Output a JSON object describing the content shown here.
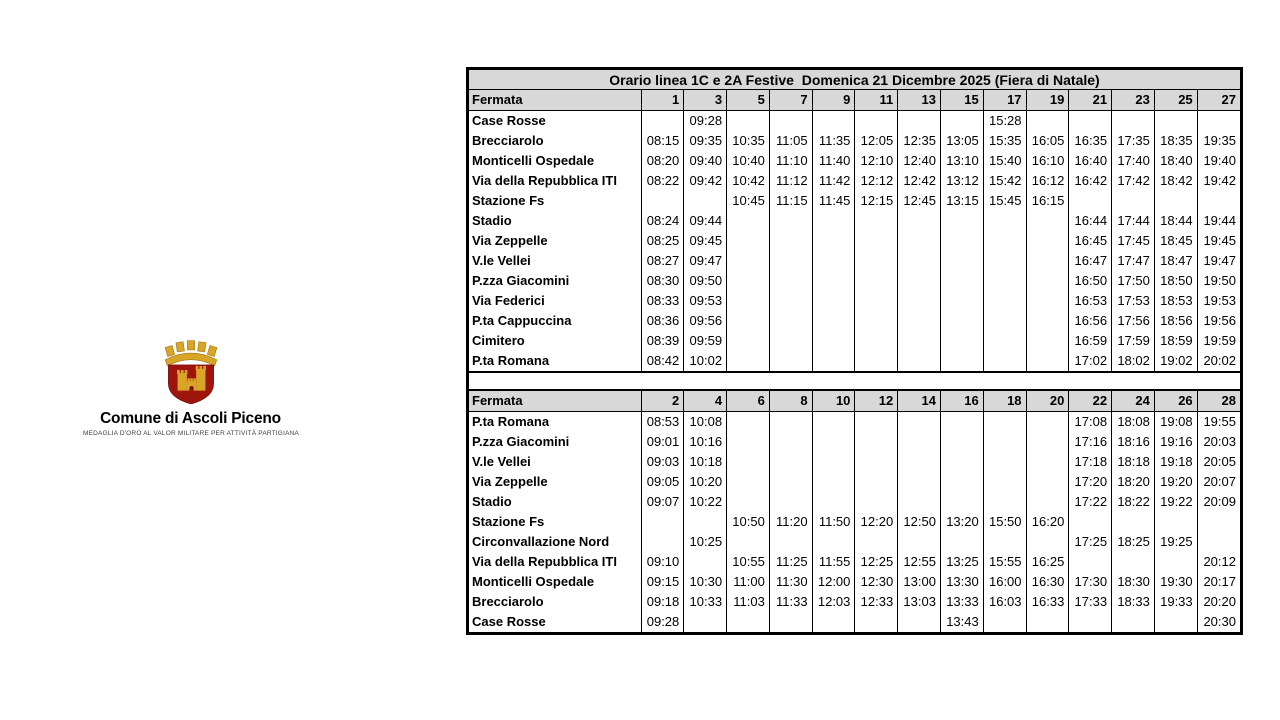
{
  "logo": {
    "title": "Comune di Ascoli Piceno",
    "subtitle": "MEDAGLIA D'ORO AL VALOR MILITARE PER ATTIVITÀ PARTIGIANA",
    "crest_colors": {
      "shield": "#9e150d",
      "gold": "#d9a527",
      "door": "#7a1008"
    }
  },
  "timetable": {
    "title": "Orario linea 1C e 2A Festive  Domenica 21 Dicembre 2025 (Fiera di Natale)",
    "header_label": "Fermata",
    "header_bg": "#d8d8d8",
    "tables": [
      {
        "columns": [
          "1",
          "3",
          "5",
          "7",
          "9",
          "11",
          "13",
          "15",
          "17",
          "19",
          "21",
          "23",
          "25",
          "27"
        ],
        "rows": [
          {
            "stop": "Case Rosse",
            "times": [
              "",
              "09:28",
              "",
              "",
              "",
              "",
              "",
              "",
              "15:28",
              "",
              "",
              "",
              "",
              ""
            ]
          },
          {
            "stop": "Brecciarolo",
            "times": [
              "08:15",
              "09:35",
              "10:35",
              "11:05",
              "11:35",
              "12:05",
              "12:35",
              "13:05",
              "15:35",
              "16:05",
              "16:35",
              "17:35",
              "18:35",
              "19:35"
            ]
          },
          {
            "stop": "Monticelli Ospedale",
            "times": [
              "08:20",
              "09:40",
              "10:40",
              "11:10",
              "11:40",
              "12:10",
              "12:40",
              "13:10",
              "15:40",
              "16:10",
              "16:40",
              "17:40",
              "18:40",
              "19:40"
            ]
          },
          {
            "stop": "Via della Repubblica ITI",
            "times": [
              "08:22",
              "09:42",
              "10:42",
              "11:12",
              "11:42",
              "12:12",
              "12:42",
              "13:12",
              "15:42",
              "16:12",
              "16:42",
              "17:42",
              "18:42",
              "19:42"
            ]
          },
          {
            "stop": "Stazione Fs",
            "times": [
              "",
              "",
              "10:45",
              "11:15",
              "11:45",
              "12:15",
              "12:45",
              "13:15",
              "15:45",
              "16:15",
              "",
              "",
              "",
              ""
            ]
          },
          {
            "stop": "Stadio",
            "times": [
              "08:24",
              "09:44",
              "",
              "",
              "",
              "",
              "",
              "",
              "",
              "",
              "16:44",
              "17:44",
              "18:44",
              "19:44"
            ]
          },
          {
            "stop": "Via Zeppelle",
            "times": [
              "08:25",
              "09:45",
              "",
              "",
              "",
              "",
              "",
              "",
              "",
              "",
              "16:45",
              "17:45",
              "18:45",
              "19:45"
            ]
          },
          {
            "stop": "V.le Vellei",
            "times": [
              "08:27",
              "09:47",
              "",
              "",
              "",
              "",
              "",
              "",
              "",
              "",
              "16:47",
              "17:47",
              "18:47",
              "19:47"
            ]
          },
          {
            "stop": "P.zza Giacomini",
            "times": [
              "08:30",
              "09:50",
              "",
              "",
              "",
              "",
              "",
              "",
              "",
              "",
              "16:50",
              "17:50",
              "18:50",
              "19:50"
            ]
          },
          {
            "stop": "Via Federici",
            "times": [
              "08:33",
              "09:53",
              "",
              "",
              "",
              "",
              "",
              "",
              "",
              "",
              "16:53",
              "17:53",
              "18:53",
              "19:53"
            ]
          },
          {
            "stop": "P.ta Cappuccina",
            "times": [
              "08:36",
              "09:56",
              "",
              "",
              "",
              "",
              "",
              "",
              "",
              "",
              "16:56",
              "17:56",
              "18:56",
              "19:56"
            ]
          },
          {
            "stop": "Cimitero",
            "times": [
              "08:39",
              "09:59",
              "",
              "",
              "",
              "",
              "",
              "",
              "",
              "",
              "16:59",
              "17:59",
              "18:59",
              "19:59"
            ]
          },
          {
            "stop": "P.ta Romana",
            "times": [
              "08:42",
              "10:02",
              "",
              "",
              "",
              "",
              "",
              "",
              "",
              "",
              "17:02",
              "18:02",
              "19:02",
              "20:02"
            ]
          }
        ]
      },
      {
        "columns": [
          "2",
          "4",
          "6",
          "8",
          "10",
          "12",
          "14",
          "16",
          "18",
          "20",
          "22",
          "24",
          "26",
          "28"
        ],
        "rows": [
          {
            "stop": "P.ta Romana",
            "times": [
              "08:53",
              "10:08",
              "",
              "",
              "",
              "",
              "",
              "",
              "",
              "",
              "17:08",
              "18:08",
              "19:08",
              "19:55"
            ]
          },
          {
            "stop": "P.zza Giacomini",
            "times": [
              "09:01",
              "10:16",
              "",
              "",
              "",
              "",
              "",
              "",
              "",
              "",
              "17:16",
              "18:16",
              "19:16",
              "20:03"
            ]
          },
          {
            "stop": "V.le Vellei",
            "times": [
              "09:03",
              "10:18",
              "",
              "",
              "",
              "",
              "",
              "",
              "",
              "",
              "17:18",
              "18:18",
              "19:18",
              "20:05"
            ]
          },
          {
            "stop": "Via Zeppelle",
            "times": [
              "09:05",
              "10:20",
              "",
              "",
              "",
              "",
              "",
              "",
              "",
              "",
              "17:20",
              "18:20",
              "19:20",
              "20:07"
            ]
          },
          {
            "stop": "Stadio",
            "times": [
              "09:07",
              "10:22",
              "",
              "",
              "",
              "",
              "",
              "",
              "",
              "",
              "17:22",
              "18:22",
              "19:22",
              "20:09"
            ]
          },
          {
            "stop": "Stazione Fs",
            "times": [
              "",
              "",
              "10:50",
              "11:20",
              "11:50",
              "12:20",
              "12:50",
              "13:20",
              "15:50",
              "16:20",
              "",
              "",
              "",
              ""
            ]
          },
          {
            "stop": "Circonvallazione Nord",
            "times": [
              "",
              "10:25",
              "",
              "",
              "",
              "",
              "",
              "",
              "",
              "",
              "17:25",
              "18:25",
              "19:25",
              ""
            ]
          },
          {
            "stop": "Via della Repubblica ITI",
            "times": [
              "09:10",
              "",
              "10:55",
              "11:25",
              "11:55",
              "12:25",
              "12:55",
              "13:25",
              "15:55",
              "16:25",
              "",
              "",
              "",
              "20:12"
            ]
          },
          {
            "stop": "Monticelli Ospedale",
            "times": [
              "09:15",
              "10:30",
              "11:00",
              "11:30",
              "12:00",
              "12:30",
              "13:00",
              "13:30",
              "16:00",
              "16:30",
              "17:30",
              "18:30",
              "19:30",
              "20:17"
            ]
          },
          {
            "stop": "Brecciarolo",
            "times": [
              "09:18",
              "10:33",
              "11:03",
              "11:33",
              "12:03",
              "12:33",
              "13:03",
              "13:33",
              "16:03",
              "16:33",
              "17:33",
              "18:33",
              "19:33",
              "20:20"
            ]
          },
          {
            "stop": "Case Rosse",
            "times": [
              "09:28",
              "",
              "",
              "",
              "",
              "",
              "",
              "13:43",
              "",
              "",
              "",
              "",
              "",
              "20:30"
            ]
          }
        ]
      }
    ]
  }
}
